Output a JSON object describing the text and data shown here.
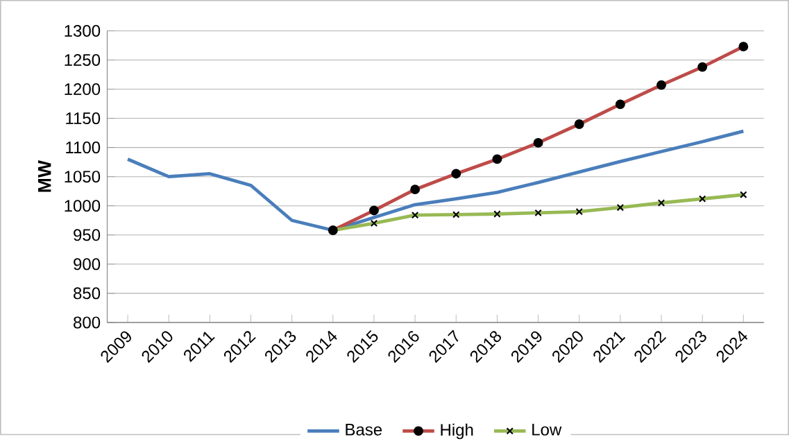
{
  "chart_data": {
    "type": "line",
    "ylabel": "MW",
    "categories": [
      "2009",
      "2010",
      "2011",
      "2012",
      "2013",
      "2014",
      "2015",
      "2016",
      "2017",
      "2018",
      "2019",
      "2020",
      "2021",
      "2022",
      "2023",
      "2024"
    ],
    "series": [
      {
        "name": "Base",
        "color": "#4a7ebb",
        "marker": "none",
        "values": [
          1080,
          1050,
          1055,
          1035,
          975,
          958,
          980,
          1002,
          1012,
          1023,
          1040,
          1058,
          1076,
          1093,
          1110,
          1128
        ]
      },
      {
        "name": "High",
        "color": "#be4b48",
        "marker": "circle",
        "values": [
          null,
          null,
          null,
          null,
          null,
          958,
          992,
          1028,
          1055,
          1080,
          1108,
          1140,
          1174,
          1207,
          1238,
          1273
        ]
      },
      {
        "name": "Low",
        "color": "#98b954",
        "marker": "cross",
        "values": [
          null,
          null,
          null,
          null,
          null,
          958,
          970,
          984,
          985,
          986,
          988,
          990,
          997,
          1005,
          1012,
          1019
        ]
      }
    ],
    "ylim": [
      800,
      1300
    ],
    "yticks": [
      800,
      850,
      900,
      950,
      1000,
      1050,
      1100,
      1150,
      1200,
      1250,
      1300
    ],
    "grid": "y",
    "legend": "bottom"
  }
}
